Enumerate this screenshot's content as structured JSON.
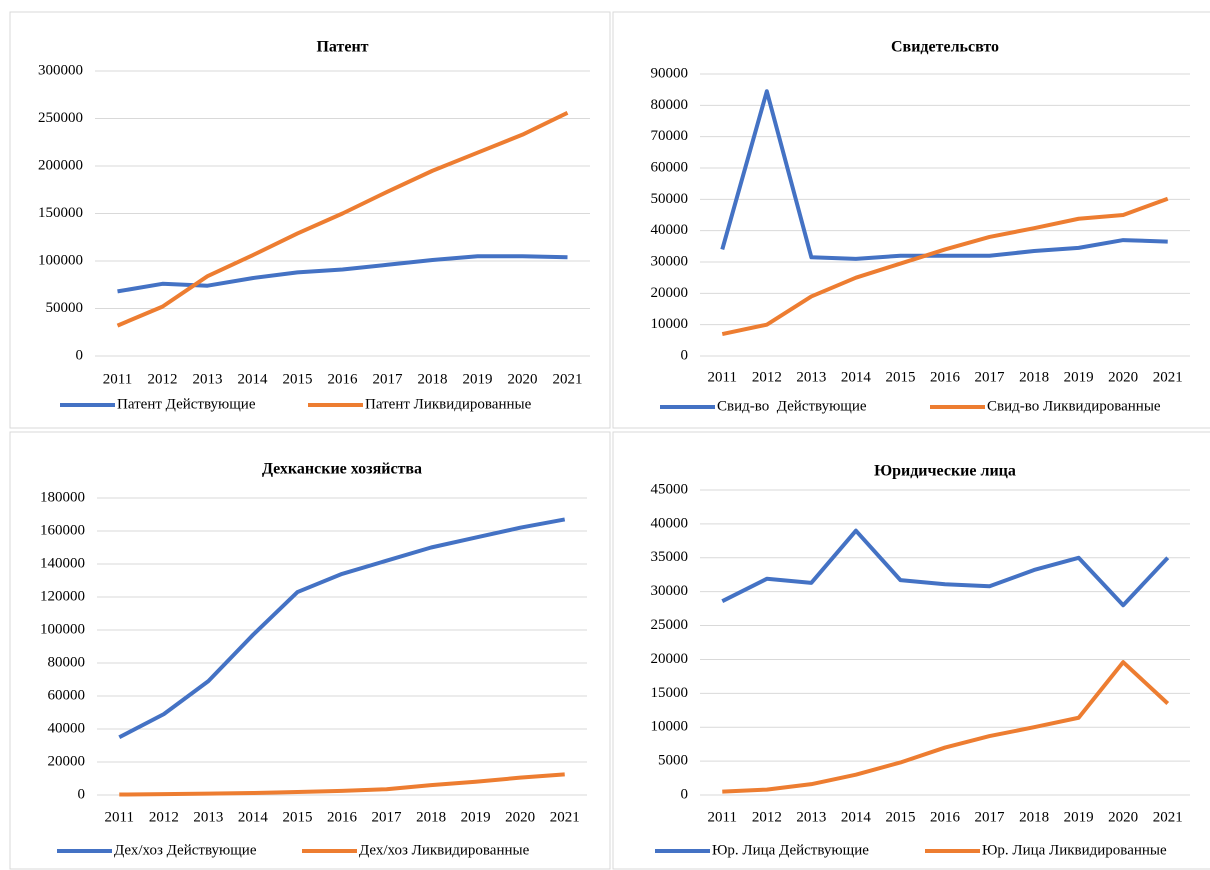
{
  "chart_data": [
    {
      "type": "line",
      "title": "Патент",
      "categories": [
        "2011",
        "2012",
        "2013",
        "2014",
        "2015",
        "2016",
        "2017",
        "2018",
        "2019",
        "2020",
        "2021"
      ],
      "ylim": [
        0,
        300000
      ],
      "yticks": [
        0,
        50000,
        100000,
        150000,
        200000,
        250000,
        300000
      ],
      "grid": true,
      "legend": "bottom",
      "series": [
        {
          "name": "Патент Действующие",
          "color": "#4472c4",
          "values": [
            68000,
            76000,
            74000,
            82000,
            88000,
            91000,
            96000,
            101000,
            105000,
            105000,
            104000
          ]
        },
        {
          "name": "Патент Ликвидированные",
          "color": "#ed7d31",
          "values": [
            32000,
            52000,
            84000,
            106000,
            129000,
            150000,
            173000,
            195000,
            214000,
            233000,
            256000
          ]
        }
      ]
    },
    {
      "type": "line",
      "title": "Свидетельсвто",
      "categories": [
        "2011",
        "2012",
        "2013",
        "2014",
        "2015",
        "2016",
        "2017",
        "2018",
        "2019",
        "2020",
        "2021"
      ],
      "ylim": [
        0,
        90000
      ],
      "yticks": [
        0,
        10000,
        20000,
        30000,
        40000,
        50000,
        60000,
        70000,
        80000,
        90000
      ],
      "grid": true,
      "legend": "bottom",
      "series": [
        {
          "name": "Свид-во  Действующие",
          "color": "#4472c4",
          "values": [
            34000,
            84500,
            31500,
            31000,
            32000,
            32000,
            32000,
            33500,
            34500,
            37000,
            36500
          ]
        },
        {
          "name": "Свид-во Ликвидированные",
          "color": "#ed7d31",
          "values": [
            7000,
            10000,
            19000,
            25000,
            29500,
            34000,
            38000,
            40800,
            43800,
            45000,
            50200
          ]
        }
      ]
    },
    {
      "type": "line",
      "title": "Дехканские хозяйства",
      "categories": [
        "2011",
        "2012",
        "2013",
        "2014",
        "2015",
        "2016",
        "2017",
        "2018",
        "2019",
        "2020",
        "2021"
      ],
      "ylim": [
        0,
        180000
      ],
      "yticks": [
        0,
        20000,
        40000,
        60000,
        80000,
        100000,
        120000,
        140000,
        160000,
        180000
      ],
      "grid": true,
      "legend": "bottom",
      "series": [
        {
          "name": "Дех/хоз Действующие",
          "color": "#4472c4",
          "values": [
            35000,
            49000,
            69000,
            97000,
            123000,
            134000,
            142000,
            150000,
            156000,
            162000,
            167000
          ]
        },
        {
          "name": "Дех/хоз Ликвидированные",
          "color": "#ed7d31",
          "values": [
            300,
            500,
            800,
            1200,
            1800,
            2500,
            3500,
            6000,
            8000,
            10500,
            12500
          ]
        }
      ]
    },
    {
      "type": "line",
      "title": "Юридические лица",
      "categories": [
        "2011",
        "2012",
        "2013",
        "2014",
        "2015",
        "2016",
        "2017",
        "2018",
        "2019",
        "2020",
        "2021"
      ],
      "ylim": [
        0,
        45000
      ],
      "yticks": [
        0,
        5000,
        10000,
        15000,
        20000,
        25000,
        30000,
        35000,
        40000,
        45000
      ],
      "grid": true,
      "legend": "bottom",
      "series": [
        {
          "name": "Юр. Лица Действующие",
          "color": "#4472c4",
          "values": [
            28600,
            31900,
            31300,
            39000,
            31700,
            31100,
            30800,
            33200,
            35000,
            28000,
            35000
          ]
        },
        {
          "name": "Юр. Лица Ликвидированные",
          "color": "#ed7d31",
          "values": [
            500,
            800,
            1600,
            3000,
            4800,
            7000,
            8700,
            10000,
            11400,
            19600,
            13500
          ]
        }
      ]
    }
  ]
}
